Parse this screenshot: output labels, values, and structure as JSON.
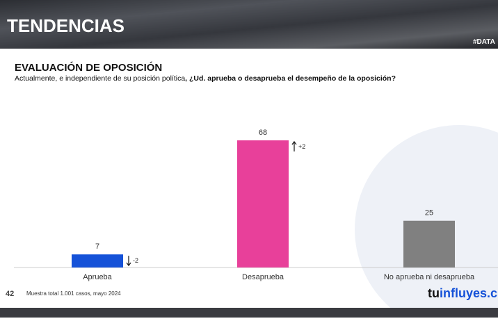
{
  "banner": {
    "title": "TENDENCIAS",
    "tag": "#DATA"
  },
  "chart_data": {
    "type": "bar",
    "title": "EVALUACIÓN DE OPOSICIÓN",
    "subtitle_parts": [
      "Actualmente, e independiente de su posición política",
      ", ¿Ud. aprueba o desaprueba el desempeño de la oposición?"
    ],
    "categories": [
      "Aprueba",
      "Desaprueba",
      "No aprueba ni desaprueba"
    ],
    "values": [
      7,
      68,
      25
    ],
    "colors": [
      "#1552d8",
      "#e8409a",
      "#808080"
    ],
    "changes": [
      -2,
      2,
      null
    ],
    "change_labels": [
      "-2",
      "+2",
      null
    ],
    "ylim": [
      0,
      95
    ]
  },
  "footer": {
    "page": "42",
    "note": "Muestra total 1.001 casos, mayo 2024",
    "logo_parts": [
      "tu",
      "influyes",
      ".c"
    ]
  }
}
